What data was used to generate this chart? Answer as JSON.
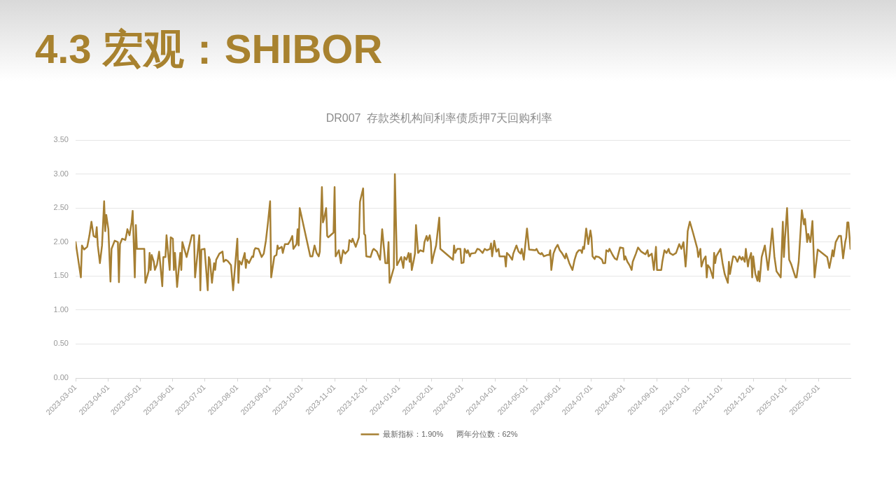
{
  "chart_data": {
    "type": "line",
    "title": "4.3 宏观：SHIBOR",
    "subtitle": "DR007  存款类机构间利率债质押7天回购利率",
    "x": [
      "2023-03-01",
      "2023-03-06",
      "2023-03-07",
      "2023-03-09",
      "2023-03-12",
      "2023-03-14",
      "2023-03-16",
      "2023-03-18",
      "2023-03-20",
      "2023-03-21",
      "2023-03-22",
      "2023-03-24",
      "2023-03-26",
      "2023-03-28",
      "2023-03-29",
      "2023-03-30",
      "2023-04-01",
      "2023-04-03",
      "2023-04-04",
      "2023-04-07",
      "2023-04-10",
      "2023-04-11",
      "2023-04-12",
      "2023-04-14",
      "2023-04-17",
      "2023-04-18",
      "2023-04-19",
      "2023-04-21",
      "2023-04-23",
      "2023-04-24",
      "2023-04-26",
      "2023-04-27",
      "2023-04-28",
      "2023-05-05",
      "2023-05-06",
      "2023-05-09",
      "2023-05-10",
      "2023-05-11",
      "2023-05-12",
      "2023-05-14",
      "2023-05-15",
      "2023-05-17",
      "2023-05-19",
      "2023-05-22",
      "2023-05-23",
      "2023-05-25",
      "2023-05-26",
      "2023-05-29",
      "2023-05-30",
      "2023-06-01",
      "2023-06-02",
      "2023-06-03",
      "2023-06-05",
      "2023-06-08",
      "2023-06-09",
      "2023-06-10",
      "2023-06-14",
      "2023-06-19",
      "2023-06-21",
      "2023-06-22",
      "2023-06-24",
      "2023-06-26",
      "2023-06-27",
      "2023-06-28",
      "2023-07-01",
      "2023-07-04",
      "2023-07-05",
      "2023-07-06",
      "2023-07-08",
      "2023-07-10",
      "2023-07-11",
      "2023-07-12",
      "2023-07-15",
      "2023-07-18",
      "2023-07-19",
      "2023-07-21",
      "2023-07-23",
      "2023-07-26",
      "2023-07-28",
      "2023-08-01",
      "2023-08-02",
      "2023-08-03",
      "2023-08-05",
      "2023-08-08",
      "2023-08-09",
      "2023-08-10",
      "2023-08-12",
      "2023-08-15",
      "2023-08-16",
      "2023-08-17",
      "2023-08-18",
      "2023-08-21",
      "2023-08-24",
      "2023-08-26",
      "2023-08-28",
      "2023-08-30",
      "2023-09-01",
      "2023-09-02",
      "2023-09-05",
      "2023-09-07",
      "2023-09-08",
      "2023-09-09",
      "2023-09-12",
      "2023-09-13",
      "2023-09-15",
      "2023-09-18",
      "2023-09-20",
      "2023-09-22",
      "2023-09-23",
      "2023-09-26",
      "2023-09-27",
      "2023-09-28",
      "2023-09-29",
      "2023-10-09",
      "2023-10-11",
      "2023-10-13",
      "2023-10-15",
      "2023-10-17",
      "2023-10-18",
      "2023-10-20",
      "2023-10-21",
      "2023-10-22",
      "2023-10-24",
      "2023-10-25",
      "2023-10-26",
      "2023-10-31",
      "2023-11-01",
      "2023-11-02",
      "2023-11-05",
      "2023-11-07",
      "2023-11-09",
      "2023-11-11",
      "2023-11-14",
      "2023-11-15",
      "2023-11-17",
      "2023-11-18",
      "2023-11-21",
      "2023-11-24",
      "2023-11-25",
      "2023-11-26",
      "2023-11-28",
      "2023-11-29",
      "2023-11-30",
      "2023-12-01",
      "2023-12-05",
      "2023-12-07",
      "2023-12-08",
      "2023-12-11",
      "2023-12-14",
      "2023-12-16",
      "2023-12-19",
      "2023-12-21",
      "2023-12-22",
      "2023-12-23",
      "2023-12-27",
      "2023-12-28",
      "2023-12-30",
      "2024-01-01",
      "2024-01-03",
      "2024-01-05",
      "2024-01-06",
      "2024-01-08",
      "2024-01-10",
      "2024-01-11",
      "2024-01-12",
      "2024-01-13",
      "2024-01-15",
      "2024-01-16",
      "2024-01-17",
      "2024-01-19",
      "2024-01-21",
      "2024-01-24",
      "2024-01-25",
      "2024-01-27",
      "2024-01-28",
      "2024-01-30",
      "2024-01-31",
      "2024-02-01",
      "2024-02-03",
      "2024-02-05",
      "2024-02-08",
      "2024-02-09",
      "2024-02-21",
      "2024-02-22",
      "2024-02-23",
      "2024-02-25",
      "2024-02-28",
      "2024-02-29",
      "2024-03-02",
      "2024-03-03",
      "2024-03-05",
      "2024-03-06",
      "2024-03-08",
      "2024-03-09",
      "2024-03-13",
      "2024-03-15",
      "2024-03-17",
      "2024-03-20",
      "2024-03-22",
      "2024-03-24",
      "2024-03-27",
      "2024-03-28",
      "2024-03-29",
      "2024-03-31",
      "2024-04-02",
      "2024-04-04",
      "2024-04-05",
      "2024-04-10",
      "2024-04-11",
      "2024-04-12",
      "2024-04-14",
      "2024-04-17",
      "2024-04-18",
      "2024-04-21",
      "2024-04-23",
      "2024-04-25",
      "2024-04-26",
      "2024-04-28",
      "2024-04-29",
      "2024-05-01",
      "2024-05-03",
      "2024-05-09",
      "2024-05-10",
      "2024-05-12",
      "2024-05-14",
      "2024-05-15",
      "2024-05-17",
      "2024-05-20",
      "2024-05-22",
      "2024-05-23",
      "2024-05-24",
      "2024-05-26",
      "2024-05-28",
      "2024-05-30",
      "2024-06-01",
      "2024-06-03",
      "2024-06-06",
      "2024-06-07",
      "2024-06-10",
      "2024-06-13",
      "2024-06-15",
      "2024-06-17",
      "2024-06-19",
      "2024-06-21",
      "2024-06-22",
      "2024-06-23",
      "2024-06-24",
      "2024-06-26",
      "2024-06-28",
      "2024-06-30",
      "2024-07-01",
      "2024-07-02",
      "2024-07-04",
      "2024-07-05",
      "2024-07-08",
      "2024-07-11",
      "2024-07-12",
      "2024-07-14",
      "2024-07-15",
      "2024-07-17",
      "2024-07-18",
      "2024-07-21",
      "2024-07-23",
      "2024-07-25",
      "2024-07-28",
      "2024-07-31",
      "2024-08-01",
      "2024-08-02",
      "2024-08-04",
      "2024-08-06",
      "2024-08-08",
      "2024-08-09",
      "2024-08-12",
      "2024-08-14",
      "2024-08-17",
      "2024-08-20",
      "2024-08-21",
      "2024-08-23",
      "2024-08-24",
      "2024-08-27",
      "2024-08-29",
      "2024-08-31",
      "2024-09-01",
      "2024-09-05",
      "2024-09-06",
      "2024-09-08",
      "2024-09-10",
      "2024-09-12",
      "2024-09-13",
      "2024-09-16",
      "2024-09-19",
      "2024-09-22",
      "2024-09-24",
      "2024-09-26",
      "2024-09-28",
      "2024-09-29",
      "2024-09-30",
      "2024-10-02",
      "2024-10-05",
      "2024-10-09",
      "2024-10-10",
      "2024-10-12",
      "2024-10-13",
      "2024-10-15",
      "2024-10-17",
      "2024-10-18",
      "2024-10-19",
      "2024-10-21",
      "2024-10-24",
      "2024-10-25",
      "2024-10-26",
      "2024-10-27",
      "2024-10-31",
      "2024-11-02",
      "2024-11-04",
      "2024-11-07",
      "2024-11-08",
      "2024-11-09",
      "2024-11-11",
      "2024-11-12",
      "2024-11-14",
      "2024-11-16",
      "2024-11-18",
      "2024-11-20",
      "2024-11-21",
      "2024-11-23",
      "2024-11-24",
      "2024-11-26",
      "2024-11-27",
      "2024-11-29",
      "2024-11-30",
      "2024-12-01",
      "2024-12-03",
      "2024-12-05",
      "2024-12-06",
      "2024-12-07",
      "2024-12-09",
      "2024-12-12",
      "2024-12-15",
      "2024-12-17",
      "2024-12-19",
      "2024-12-21",
      "2024-12-23",
      "2024-12-27",
      "2024-12-29",
      "2024-12-30",
      "2024-12-31",
      "2025-01-02",
      "2025-01-04",
      "2025-01-06",
      "2025-01-10",
      "2025-01-11",
      "2025-01-13",
      "2025-01-16",
      "2025-01-18",
      "2025-01-19",
      "2025-01-21",
      "2025-01-22",
      "2025-01-24",
      "2025-01-25",
      "2025-01-26",
      "2025-01-28",
      "2025-01-31",
      "2025-02-09",
      "2025-02-11",
      "2025-02-13",
      "2025-02-14",
      "2025-02-15",
      "2025-02-17",
      "2025-02-20",
      "2025-02-22",
      "2025-02-24",
      "2025-02-26",
      "2025-02-27",
      "2025-02-28",
      "2025-03-01",
      "2025-03-03"
    ],
    "series": [
      {
        "name": "最新指标：1.90%      两年分位数：62%",
        "color": "#a67f32",
        "values": [
          2.0,
          1.48,
          1.95,
          1.89,
          1.93,
          2.09,
          2.3,
          2.09,
          2.07,
          2.22,
          1.95,
          1.69,
          1.95,
          2.6,
          2.16,
          2.4,
          2.19,
          1.42,
          1.9,
          2.02,
          2.0,
          1.41,
          1.97,
          2.05,
          2.03,
          2.1,
          2.19,
          2.1,
          2.29,
          2.46,
          1.48,
          2.25,
          1.9,
          1.9,
          1.4,
          1.57,
          1.84,
          1.59,
          1.81,
          1.71,
          1.59,
          1.67,
          1.86,
          1.35,
          1.78,
          1.78,
          2.1,
          1.59,
          2.07,
          2.05,
          1.59,
          1.84,
          1.34,
          1.84,
          1.59,
          2.0,
          1.78,
          2.1,
          2.1,
          1.48,
          1.78,
          2.1,
          1.29,
          1.89,
          1.9,
          1.29,
          1.78,
          1.74,
          1.4,
          1.69,
          1.59,
          1.74,
          1.83,
          1.86,
          1.71,
          1.74,
          1.72,
          1.66,
          1.29,
          2.05,
          1.4,
          1.72,
          1.67,
          1.84,
          1.62,
          1.74,
          1.69,
          1.79,
          1.78,
          1.88,
          1.91,
          1.9,
          1.78,
          1.83,
          2.02,
          2.29,
          2.6,
          1.48,
          1.79,
          1.81,
          1.95,
          1.9,
          1.93,
          1.84,
          1.97,
          1.97,
          2.02,
          2.09,
          1.9,
          1.97,
          2.19,
          1.95,
          2.5,
          1.79,
          1.79,
          1.95,
          1.84,
          1.79,
          1.86,
          2.81,
          2.29,
          2.34,
          2.5,
          2.09,
          2.07,
          2.14,
          2.81,
          1.79,
          1.88,
          1.69,
          1.88,
          1.83,
          1.88,
          2.03,
          2.0,
          2.05,
          1.93,
          2.07,
          2.59,
          2.66,
          2.79,
          2.12,
          2.1,
          1.79,
          1.78,
          1.88,
          1.9,
          1.86,
          1.74,
          2.19,
          1.69,
          1.69,
          2.0,
          1.4,
          1.62,
          3.0,
          1.66,
          1.72,
          1.78,
          1.62,
          1.78,
          1.74,
          1.84,
          1.71,
          1.83,
          1.59,
          1.74,
          1.83,
          2.25,
          1.84,
          1.88,
          1.86,
          2.0,
          2.09,
          2.02,
          2.1,
          2.0,
          1.69,
          1.83,
          1.95,
          2.36,
          1.9,
          1.74,
          1.95,
          1.84,
          1.9,
          1.9,
          1.69,
          1.7,
          1.9,
          1.84,
          1.88,
          1.79,
          1.83,
          1.84,
          1.9,
          1.89,
          1.84,
          1.9,
          1.88,
          1.9,
          1.98,
          1.79,
          2.02,
          1.86,
          1.9,
          1.79,
          1.79,
          1.64,
          1.84,
          1.81,
          1.74,
          1.83,
          1.95,
          1.86,
          1.83,
          1.9,
          1.74,
          1.9,
          2.2,
          1.89,
          1.88,
          1.9,
          1.84,
          1.82,
          1.84,
          1.79,
          1.81,
          1.81,
          1.88,
          1.59,
          1.83,
          1.91,
          1.96,
          1.88,
          1.84,
          1.76,
          1.83,
          1.69,
          1.59,
          1.74,
          1.84,
          1.88,
          1.88,
          1.84,
          1.93,
          1.9,
          2.2,
          1.97,
          2.17,
          2.07,
          1.79,
          1.75,
          1.79,
          1.78,
          1.74,
          1.69,
          1.69,
          1.88,
          1.86,
          1.9,
          1.81,
          1.76,
          1.74,
          1.92,
          1.91,
          1.74,
          1.79,
          1.71,
          1.66,
          1.59,
          1.71,
          1.83,
          1.92,
          1.86,
          1.83,
          1.82,
          1.88,
          1.79,
          1.83,
          1.59,
          1.93,
          1.59,
          1.59,
          1.71,
          1.88,
          1.84,
          1.9,
          1.84,
          1.81,
          1.84,
          1.97,
          1.9,
          2.0,
          1.64,
          1.84,
          2.16,
          2.3,
          2.14,
          1.91,
          1.78,
          1.9,
          1.64,
          1.74,
          1.79,
          1.48,
          1.66,
          1.62,
          1.47,
          1.84,
          1.69,
          1.79,
          1.9,
          1.69,
          1.53,
          1.4,
          1.71,
          1.53,
          1.71,
          1.79,
          1.78,
          1.71,
          1.79,
          1.74,
          1.78,
          1.71,
          1.9,
          1.64,
          1.74,
          1.84,
          1.48,
          1.79,
          1.53,
          1.43,
          1.57,
          1.42,
          1.78,
          1.95,
          1.59,
          1.88,
          2.2,
          1.79,
          1.57,
          1.48,
          2.3,
          1.78,
          2.05,
          2.5,
          1.74,
          1.67,
          1.48,
          1.48,
          1.71,
          2.47,
          2.26,
          2.34,
          2.0,
          2.12,
          2.0,
          2.14,
          2.31,
          1.48,
          1.89,
          1.78,
          1.62,
          1.78,
          1.88,
          1.79,
          2.0,
          2.09,
          2.09,
          1.76,
          2.0,
          2.07,
          2.29,
          2.29,
          1.9
        ]
      }
    ],
    "xlim": [
      "2023-03-01",
      "2025-03-03"
    ],
    "xticks": [
      "2023-03-01",
      "2023-04-01",
      "2023-05-01",
      "2023-06-01",
      "2023-07-01",
      "2023-08-01",
      "2023-09-01",
      "2023-10-01",
      "2023-11-01",
      "2023-12-01",
      "2024-01-01",
      "2024-02-01",
      "2024-03-01",
      "2024-04-01",
      "2024-05-01",
      "2024-06-01",
      "2024-07-01",
      "2024-08-01",
      "2024-09-01",
      "2024-10-01",
      "2024-11-01",
      "2024-12-01",
      "2025-01-01",
      "2025-02-01"
    ],
    "ylim": [
      0,
      3.5
    ],
    "yticks": [
      {
        "value": 0,
        "label": "0.00"
      },
      {
        "value": 0.5,
        "label": "0.50"
      },
      {
        "value": 1,
        "label": "1.00"
      },
      {
        "value": 1.5,
        "label": "1.50"
      },
      {
        "value": 2,
        "label": "2.00"
      },
      {
        "value": 2.5,
        "label": "2.50"
      },
      {
        "value": 3,
        "label": "3.00"
      },
      {
        "value": 3.5,
        "label": "3.50"
      }
    ],
    "grid": "y",
    "legend": "bottom",
    "marker": "none",
    "line_style": "solid"
  }
}
